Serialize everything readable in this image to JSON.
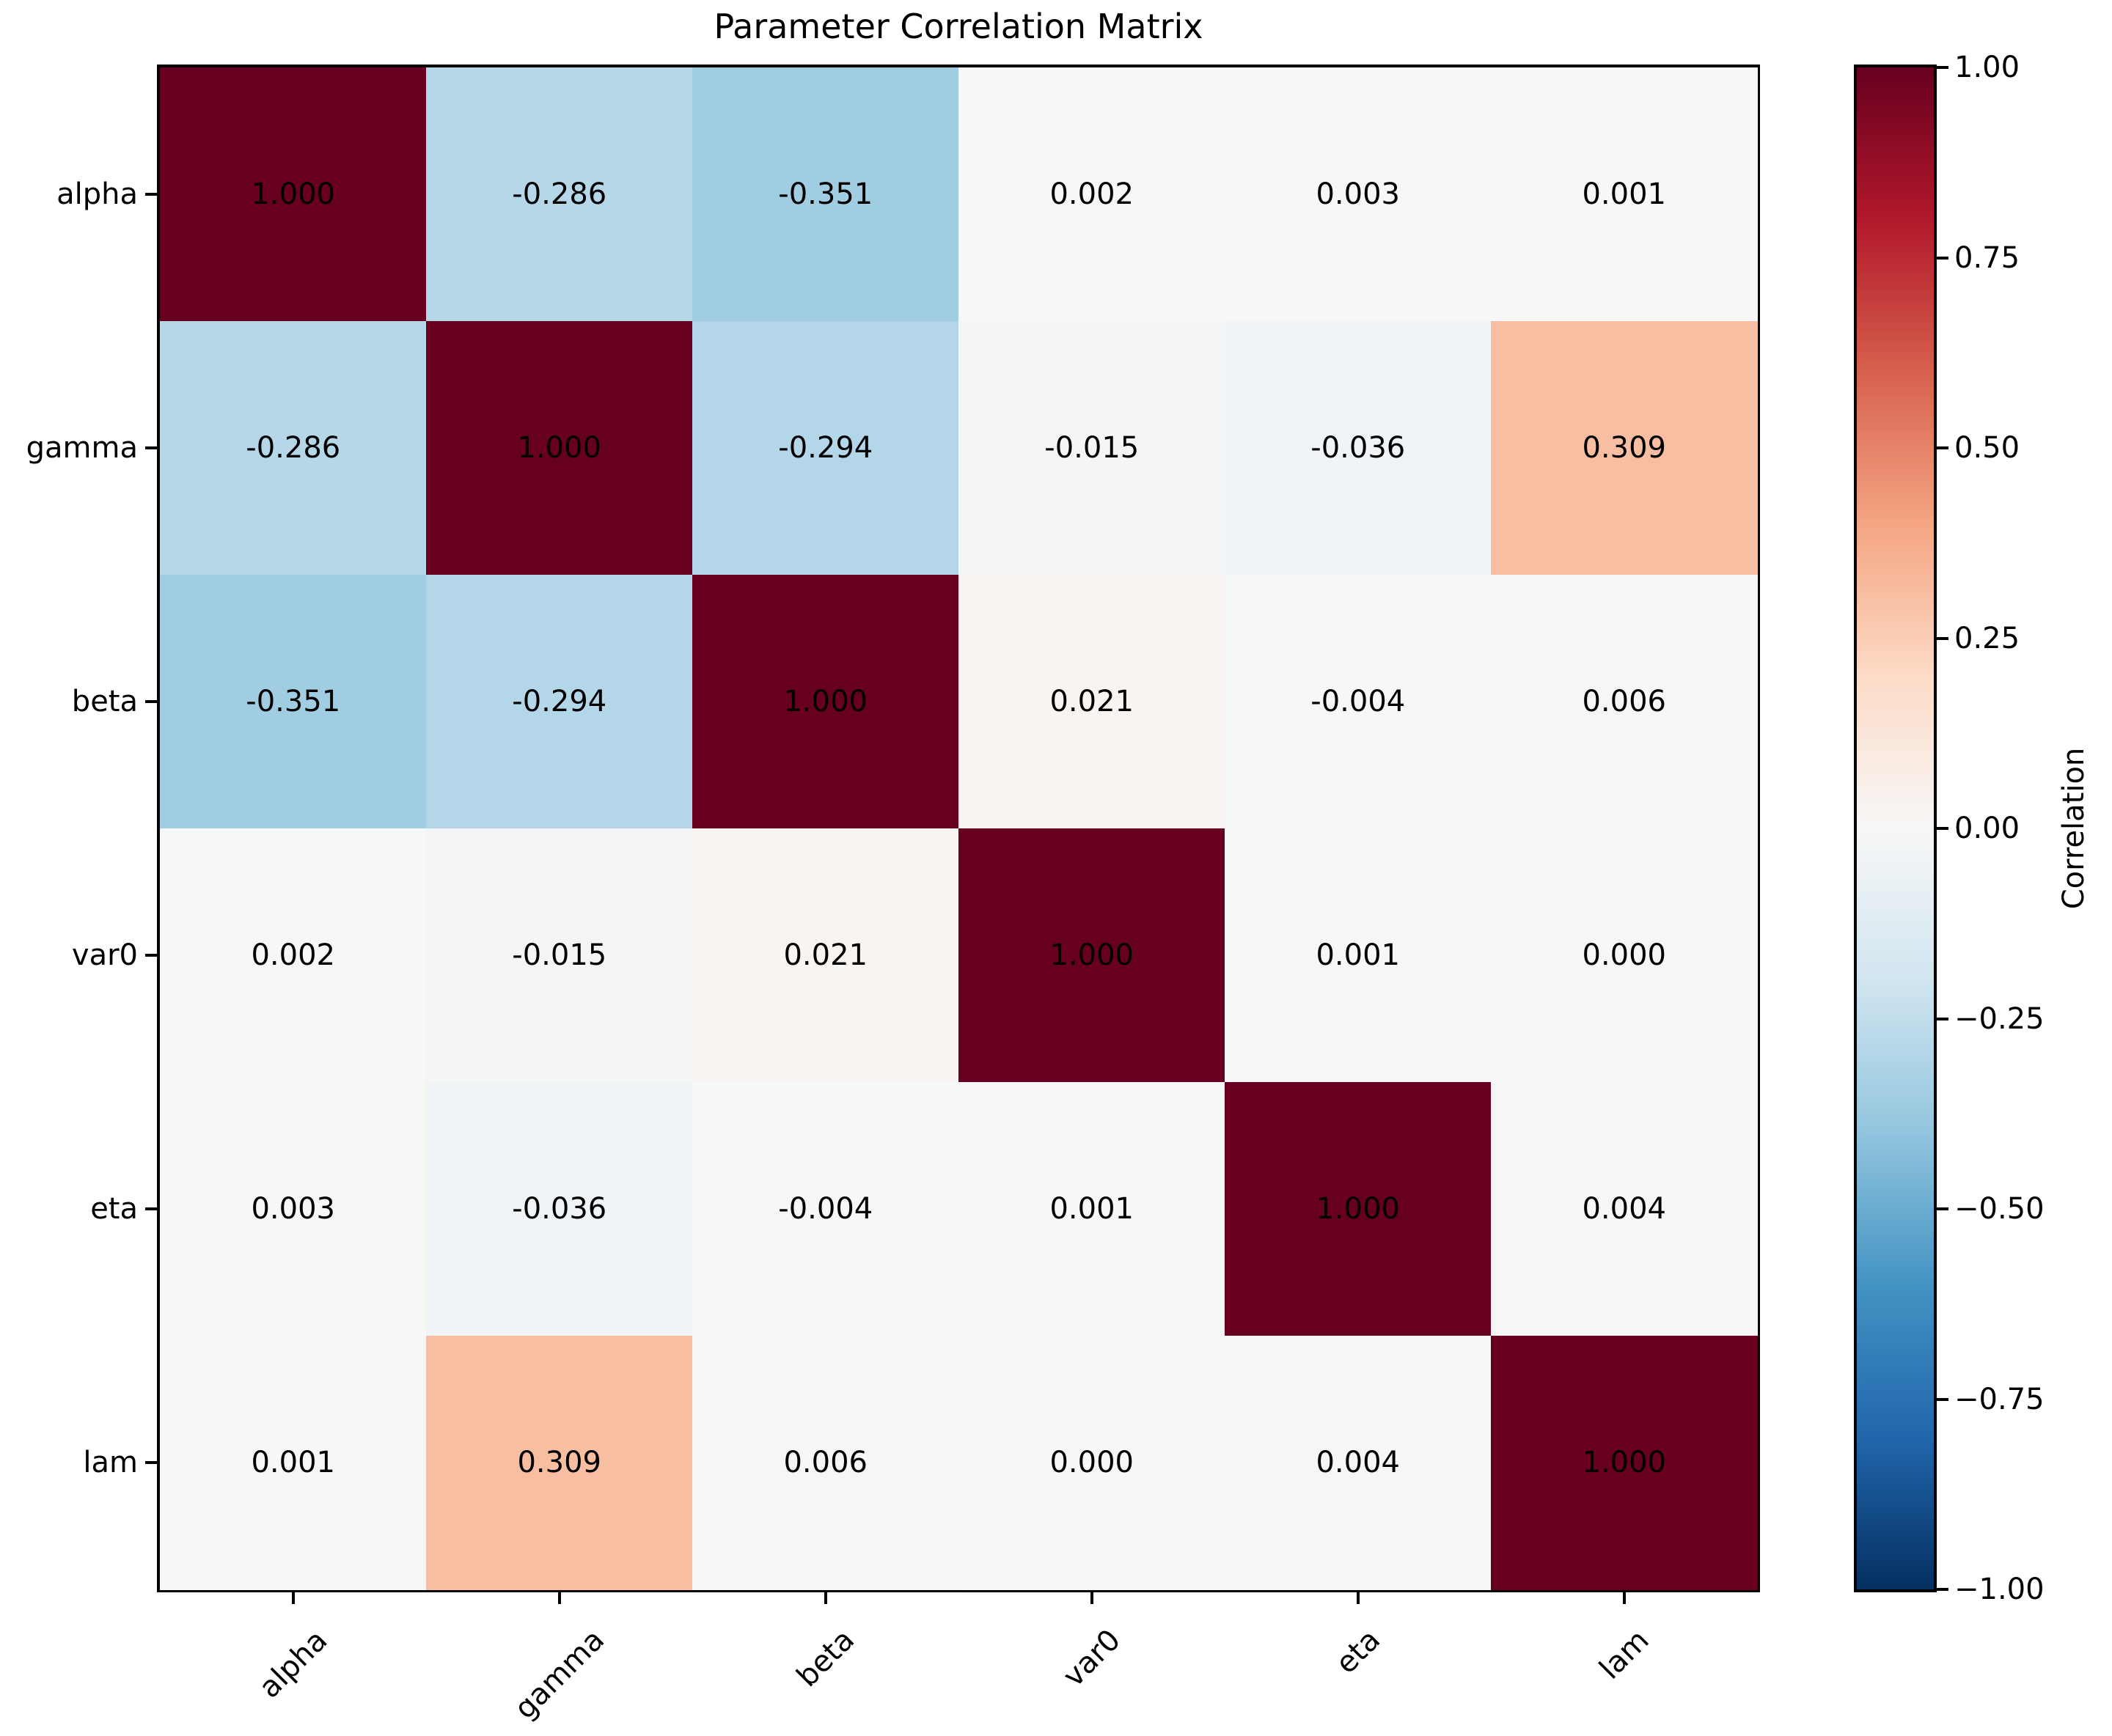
{
  "title": "Parameter Correlation Matrix",
  "chart_data": {
    "type": "heatmap",
    "title": "Parameter Correlation Matrix",
    "categories": [
      "alpha",
      "gamma",
      "beta",
      "var0",
      "eta",
      "lam"
    ],
    "matrix": [
      [
        1.0,
        -0.286,
        -0.351,
        0.002,
        0.003,
        0.001
      ],
      [
        -0.286,
        1.0,
        -0.294,
        -0.015,
        -0.036,
        0.309
      ],
      [
        -0.351,
        -0.294,
        1.0,
        0.021,
        -0.004,
        0.006
      ],
      [
        0.002,
        -0.015,
        0.021,
        1.0,
        0.001,
        0.0
      ],
      [
        0.003,
        -0.036,
        -0.004,
        0.001,
        1.0,
        0.004
      ],
      [
        0.001,
        0.309,
        0.006,
        0.0,
        0.004,
        1.0
      ]
    ],
    "cell_value_decimals": 3,
    "vmin": -1.0,
    "vmax": 1.0,
    "grid": false,
    "colormap": {
      "name": "RdBu_r",
      "stops": [
        "#053061",
        "#2166ac",
        "#4393c3",
        "#92c5de",
        "#d1e5f0",
        "#f7f7f7",
        "#fddbc7",
        "#f4a582",
        "#d6604d",
        "#b2182b",
        "#67001f"
      ]
    },
    "colorbar": {
      "label": "Correlation",
      "tick_values": [
        1.0,
        0.75,
        0.5,
        0.25,
        0.0,
        -0.25,
        -0.5,
        -0.75,
        -1.0
      ],
      "tick_labels": [
        "1.00",
        "0.75",
        "0.50",
        "0.25",
        "0.00",
        "−0.25",
        "−0.50",
        "−0.75",
        "−1.00"
      ]
    },
    "text_color": "#000000"
  }
}
